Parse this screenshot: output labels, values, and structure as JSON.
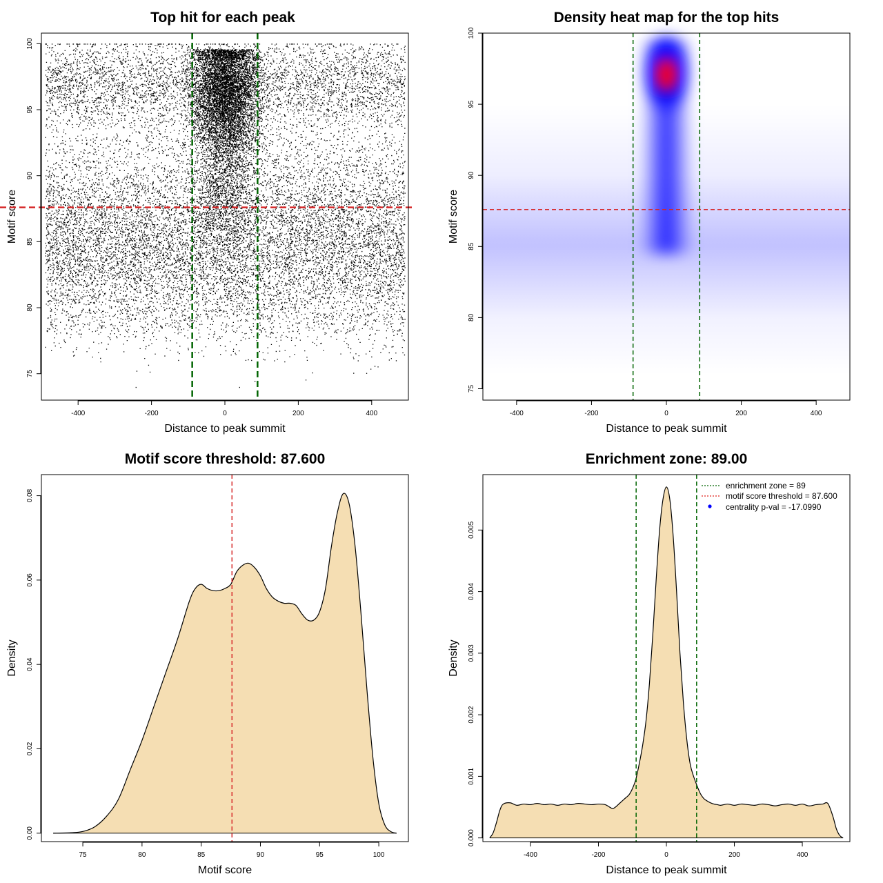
{
  "chart_data": [
    {
      "id": "scatter",
      "type": "scatter",
      "title": "Top hit for each peak",
      "xlabel": "Distance to peak summit",
      "ylabel": "Motif score",
      "xlim": [
        -500,
        500
      ],
      "ylim": [
        73.0,
        100.8
      ],
      "xticks": [
        -400,
        -200,
        0,
        200,
        400
      ],
      "yticks": [
        75,
        80,
        85,
        90,
        95,
        100
      ],
      "vlines": [
        -89,
        89
      ],
      "hline": 87.6,
      "point_distribution": {
        "n_background": 16000,
        "n_central": 8000,
        "x_range": [
          -490,
          490
        ],
        "central_sd": 45,
        "background_mode": 85,
        "central_mode": 96.5,
        "score_range": [
          74,
          100
        ]
      }
    },
    {
      "id": "heatmap",
      "type": "heatmap",
      "title": "Density heat map for the top hits",
      "xlabel": "Distance to peak summit",
      "ylabel": "Motif score",
      "xlim": [
        -490,
        490
      ],
      "ylim": [
        74.2,
        100
      ],
      "xticks": [
        -400,
        -200,
        0,
        200,
        400
      ],
      "yticks": [
        75,
        80,
        85,
        90,
        95,
        100
      ],
      "vlines": [
        -89,
        89
      ],
      "hline": 87.6,
      "peak": {
        "x": 0,
        "y": 97.2
      }
    },
    {
      "id": "score-density",
      "type": "area",
      "title": "Motif score threshold: 87.600",
      "xlabel": "Motif score",
      "ylabel": "Density",
      "xlim": [
        71.5,
        102.5
      ],
      "ylim": [
        -0.002,
        0.085
      ],
      "xticks": [
        75,
        80,
        85,
        90,
        95,
        100
      ],
      "yticks": [
        0.0,
        0.02,
        0.04,
        0.06,
        0.08
      ],
      "ytick_labels": [
        "0.00",
        "0.02",
        "0.04",
        "0.06",
        "0.08"
      ],
      "vline": 87.6,
      "x": [
        72.5,
        74,
        75,
        76,
        77,
        78,
        79,
        80,
        81,
        82,
        83,
        84,
        84.5,
        85,
        85.5,
        86,
        86.5,
        87,
        87.5,
        88,
        88.5,
        89,
        89.5,
        90,
        90.5,
        91,
        91.5,
        92,
        92.5,
        93,
        93.5,
        94,
        94.5,
        95,
        95.5,
        96,
        96.5,
        97,
        97.5,
        98,
        98.5,
        99,
        99.5,
        100,
        100.5,
        101,
        101.5
      ],
      "y": [
        0.0,
        0.0001,
        0.0004,
        0.0015,
        0.004,
        0.008,
        0.015,
        0.022,
        0.03,
        0.038,
        0.046,
        0.055,
        0.058,
        0.059,
        0.058,
        0.0575,
        0.0575,
        0.058,
        0.059,
        0.062,
        0.0635,
        0.064,
        0.063,
        0.061,
        0.058,
        0.056,
        0.055,
        0.0545,
        0.0545,
        0.054,
        0.052,
        0.0505,
        0.0505,
        0.0525,
        0.058,
        0.068,
        0.076,
        0.0805,
        0.078,
        0.068,
        0.052,
        0.034,
        0.018,
        0.007,
        0.002,
        0.0004,
        0.0
      ]
    },
    {
      "id": "distance-density",
      "type": "area",
      "title": "Enrichment zone: 89.00",
      "xlabel": "Distance to peak summit",
      "ylabel": "Density",
      "xlim": [
        -540,
        540
      ],
      "ylim": [
        -6e-05,
        0.0059
      ],
      "xticks": [
        -400,
        -200,
        0,
        200,
        400
      ],
      "yticks": [
        0.0,
        0.001,
        0.002,
        0.003,
        0.004,
        0.005
      ],
      "ytick_labels": [
        "0.000",
        "0.001",
        "0.002",
        "0.003",
        "0.004",
        "0.005"
      ],
      "vlines": [
        -89,
        89
      ],
      "x": [
        -520,
        -510,
        -500,
        -490,
        -480,
        -460,
        -440,
        -420,
        -400,
        -380,
        -360,
        -340,
        -320,
        -300,
        -280,
        -260,
        -240,
        -220,
        -200,
        -180,
        -160,
        -150,
        -140,
        -130,
        -120,
        -110,
        -100,
        -90,
        -80,
        -70,
        -60,
        -50,
        -40,
        -30,
        -20,
        -10,
        0,
        10,
        20,
        30,
        40,
        50,
        60,
        70,
        80,
        90,
        100,
        110,
        120,
        130,
        140,
        150,
        160,
        180,
        200,
        220,
        240,
        260,
        280,
        300,
        320,
        340,
        360,
        380,
        400,
        420,
        440,
        460,
        475,
        490,
        500,
        510,
        520
      ],
      "y": [
        0.0,
        8e-05,
        0.00025,
        0.00045,
        0.00055,
        0.00057,
        0.00053,
        0.00055,
        0.00054,
        0.00056,
        0.00054,
        0.00055,
        0.00053,
        0.00055,
        0.00054,
        0.00056,
        0.00055,
        0.00054,
        0.00055,
        0.00054,
        0.00048,
        0.0005,
        0.00055,
        0.0006,
        0.00065,
        0.0007,
        0.0008,
        0.00095,
        0.0012,
        0.0015,
        0.0019,
        0.0025,
        0.0033,
        0.0042,
        0.005,
        0.0055,
        0.0057,
        0.0055,
        0.0049,
        0.004,
        0.003,
        0.0022,
        0.0016,
        0.0012,
        0.001,
        0.00085,
        0.00072,
        0.00064,
        0.0006,
        0.00057,
        0.00055,
        0.00054,
        0.00053,
        0.00055,
        0.00053,
        0.00055,
        0.00054,
        0.00053,
        0.00055,
        0.00054,
        0.00052,
        0.00054,
        0.00055,
        0.00053,
        0.00055,
        0.00052,
        0.00054,
        0.00055,
        0.00056,
        0.00035,
        0.00015,
        4e-05,
        0.0
      ]
    }
  ],
  "legend": {
    "items": [
      {
        "label": "enrichment zone = 89",
        "color": "#006400",
        "kind": "dotted-line"
      },
      {
        "label": "motif score threshold = 87.600",
        "color": "#e0201b",
        "kind": "dotted-line"
      },
      {
        "label": "centrality p-val = -17.0990",
        "color": "#0000ff",
        "kind": "point"
      }
    ]
  },
  "colors": {
    "fill": "#f5deb3",
    "green": "#006400",
    "red": "#d62728",
    "heat_low": "#ffffff",
    "heat_mid": "#0000ff",
    "heat_high": "#ff0000"
  }
}
